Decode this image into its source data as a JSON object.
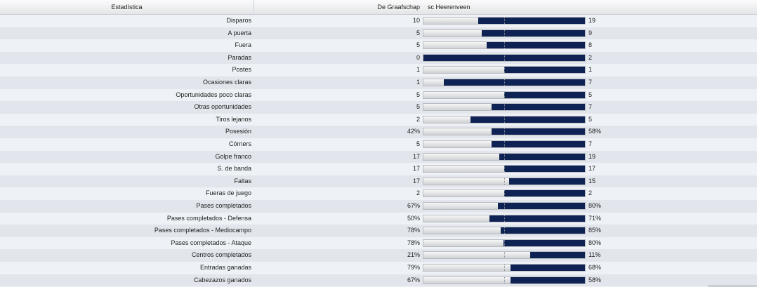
{
  "header": {
    "stat_label": "Estadística",
    "home_team": "De Graafschap",
    "away_team": "sc Heerenveen"
  },
  "colors": {
    "away_fill": "#0f2254",
    "home_fill": "#e4e5e7"
  },
  "stats": [
    {
      "label": "Disparos",
      "home": "10",
      "away": "19",
      "away_share": 0.66
    },
    {
      "label": "A puerta",
      "home": "5",
      "away": "9",
      "away_share": 0.64
    },
    {
      "label": "Fuera",
      "home": "5",
      "away": "8",
      "away_share": 0.61
    },
    {
      "label": "Paradas",
      "home": "0",
      "away": "2",
      "away_share": 1.0
    },
    {
      "label": "Postes",
      "home": "1",
      "away": "1",
      "away_share": 0.5
    },
    {
      "label": "Ocasiones claras",
      "home": "1",
      "away": "7",
      "away_share": 0.875
    },
    {
      "label": "Oportunidades poco claras",
      "home": "5",
      "away": "5",
      "away_share": 0.5
    },
    {
      "label": "Otras oportunidades",
      "home": "5",
      "away": "7",
      "away_share": 0.58
    },
    {
      "label": "Tiros lejanos",
      "home": "2",
      "away": "5",
      "away_share": 0.71
    },
    {
      "label": "Posesión",
      "home": "42%",
      "away": "58%",
      "away_share": 0.58
    },
    {
      "label": "Córners",
      "home": "5",
      "away": "7",
      "away_share": 0.58
    },
    {
      "label": "Golpe franco",
      "home": "17",
      "away": "19",
      "away_share": 0.53
    },
    {
      "label": "S. de banda",
      "home": "17",
      "away": "17",
      "away_share": 0.5
    },
    {
      "label": "Faltas",
      "home": "17",
      "away": "15",
      "away_share": 0.47
    },
    {
      "label": "Fueras de juego",
      "home": "2",
      "away": "2",
      "away_share": 0.5
    },
    {
      "label": "Pases completados",
      "home": "67%",
      "away": "80%",
      "away_share": 0.54
    },
    {
      "label": "Pases completados - Defensa",
      "home": "50%",
      "away": "71%",
      "away_share": 0.59
    },
    {
      "label": "Pases completados - Mediocampo",
      "home": "78%",
      "away": "85%",
      "away_share": 0.52
    },
    {
      "label": "Pases completados - Ataque",
      "home": "78%",
      "away": "80%",
      "away_share": 0.506
    },
    {
      "label": "Centros completados",
      "home": "21%",
      "away": "11%",
      "away_share": 0.34
    },
    {
      "label": "Entradas ganadas",
      "home": "79%",
      "away": "68%",
      "away_share": 0.46
    },
    {
      "label": "Cabezazos ganados",
      "home": "67%",
      "away": "58%",
      "away_share": 0.46
    }
  ]
}
